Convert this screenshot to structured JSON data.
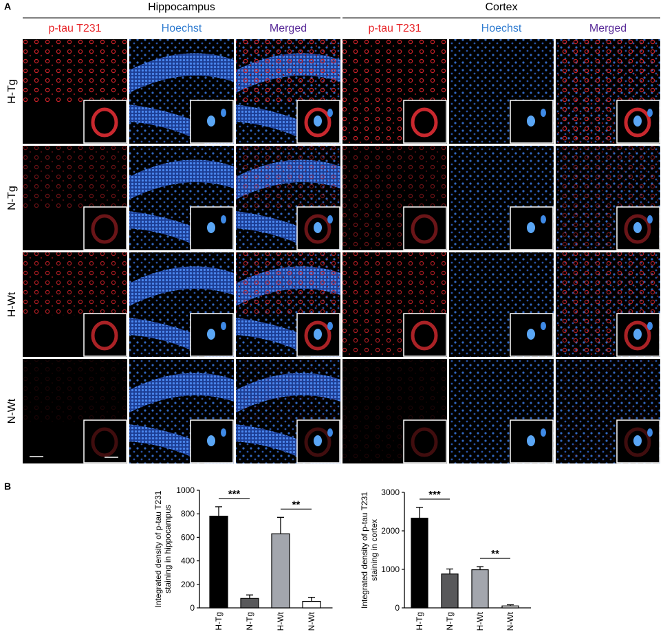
{
  "panel_a": {
    "label": "A",
    "groups": [
      {
        "title": "Hippocampus",
        "columns": [
          "p-tau T231",
          "Hoechst",
          "Merged"
        ]
      },
      {
        "title": "Cortex",
        "columns": [
          "p-tau T231",
          "Hoechst",
          "Merged"
        ]
      }
    ],
    "rows": [
      "H-Tg",
      "N-Tg",
      "H-Wt",
      "N-Wt"
    ]
  },
  "panel_b": {
    "label": "B"
  },
  "chart_data": [
    {
      "type": "bar",
      "ylabel": [
        "Integrated density of p-tau T231",
        "staining in hippocampus"
      ],
      "categories": [
        "H-Tg",
        "N-Tg",
        "H-Wt",
        "N-Wt"
      ],
      "values": [
        780,
        80,
        630,
        55
      ],
      "errors": [
        80,
        30,
        140,
        35
      ],
      "colors": [
        "#000000",
        "#58585a",
        "#a3a6ad",
        "#ffffff"
      ],
      "ylim": [
        0,
        1000
      ],
      "yticks": [
        0,
        200,
        400,
        600,
        800,
        1000
      ],
      "annotations": [
        "***",
        "**"
      ]
    },
    {
      "type": "bar",
      "ylabel": [
        "Integrated density of p-tau T231",
        "staining in cortex"
      ],
      "categories": [
        "H-Tg",
        "N-Tg",
        "H-Wt",
        "N-Wt"
      ],
      "values": [
        2330,
        880,
        990,
        50
      ],
      "errors": [
        280,
        130,
        80,
        30
      ],
      "colors": [
        "#000000",
        "#58585a",
        "#a3a6ad",
        "#ffffff"
      ],
      "ylim": [
        0,
        3000
      ],
      "yticks": [
        0,
        1000,
        2000,
        3000
      ],
      "annotations": [
        "***",
        "**"
      ]
    }
  ]
}
